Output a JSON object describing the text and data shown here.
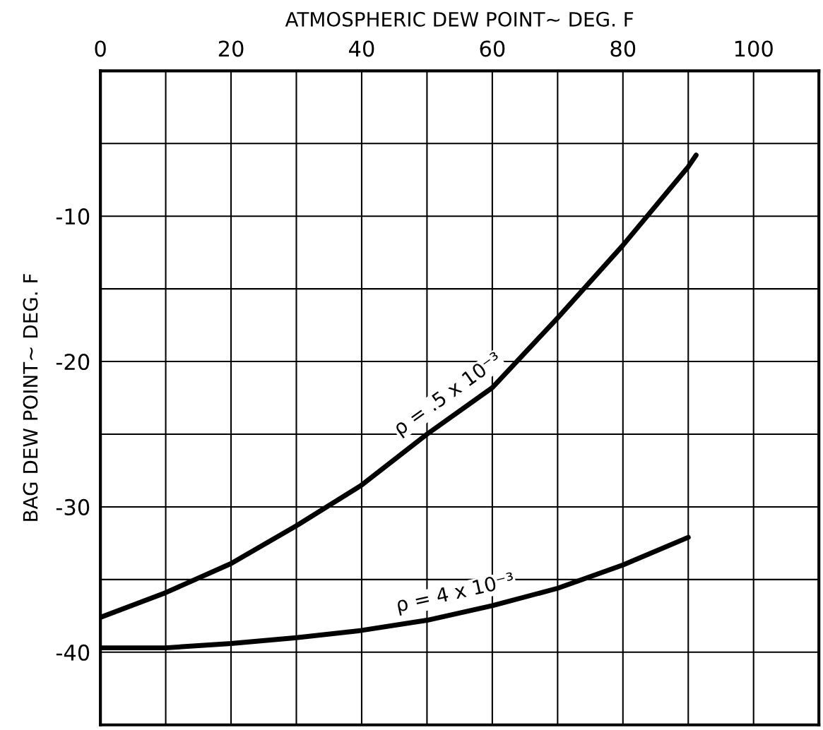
{
  "chart_data": {
    "type": "line",
    "xlabel": "ATMOSPHERIC DEW POINT∼ DEG. F",
    "ylabel": "BAG DEW POINT∼ DEG. F",
    "xlim": [
      0,
      110
    ],
    "xticks": [
      0,
      {
        "value": 10,
        "label": null
      },
      20,
      {
        "value": 30,
        "label": null
      },
      40,
      {
        "value": 50,
        "label": null
      },
      60,
      {
        "value": 70,
        "label": null
      },
      80,
      {
        "value": 90,
        "label": null
      },
      100
    ],
    "ylim": [
      -45,
      0
    ],
    "yticks": [
      {
        "value": -5,
        "label": null
      },
      -10,
      {
        "value": -15,
        "label": null
      },
      -20,
      {
        "value": -25,
        "label": null
      },
      -30,
      {
        "value": -35,
        "label": null
      },
      -40
    ],
    "grid": true,
    "legend": false,
    "marker": "none",
    "line_style": "solid",
    "series": [
      {
        "name": "ρ = .5 x 10⁻³",
        "color": "#000000",
        "x": [
          0,
          10,
          20,
          30,
          40,
          50,
          60,
          70,
          80,
          90,
          91.2
        ],
        "values": [
          -37.6,
          -35.9,
          -33.9,
          -31.3,
          -28.5,
          -25.0,
          -21.8,
          -17.0,
          -12.0,
          -6.6,
          -5.8
        ]
      },
      {
        "name": "ρ = 4 x 10⁻³",
        "color": "#000000",
        "x": [
          0,
          10,
          20,
          30,
          40,
          50,
          60,
          70,
          80,
          90
        ],
        "values": [
          -39.7,
          -39.7,
          -39.4,
          -39.0,
          -38.5,
          -37.8,
          -36.8,
          -35.6,
          -34.0,
          -32.1
        ]
      }
    ]
  }
}
